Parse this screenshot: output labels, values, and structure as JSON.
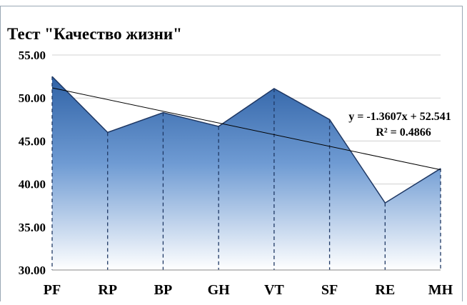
{
  "chart_data": {
    "type": "area",
    "title": "Тест \"Качество  жизни\"",
    "categories": [
      "PF",
      "RP",
      "BP",
      "GH",
      "VT",
      "SF",
      "RE",
      "MH"
    ],
    "values": [
      52.5,
      46.0,
      48.3,
      46.7,
      51.1,
      47.5,
      37.8,
      41.8
    ],
    "color": "#3c6eae",
    "line_color": "#1f3864",
    "ylim": [
      30,
      55
    ],
    "yticks": [
      {
        "value": 30,
        "label": "30.00"
      },
      {
        "value": 35,
        "label": "35.00"
      },
      {
        "value": 40,
        "label": "40.00"
      },
      {
        "value": 45,
        "label": "45.00"
      },
      {
        "value": 50,
        "label": "50.00"
      },
      {
        "value": 55,
        "label": "55.00"
      }
    ],
    "grid": true,
    "drop_lines": true,
    "trendline": {
      "type": "linear",
      "slope": -1.3607,
      "intercept": 52.541,
      "equation": "y = -1.3607x + 52.541",
      "r2": 0.4866,
      "r2_label": "R² = 0.4866"
    }
  }
}
